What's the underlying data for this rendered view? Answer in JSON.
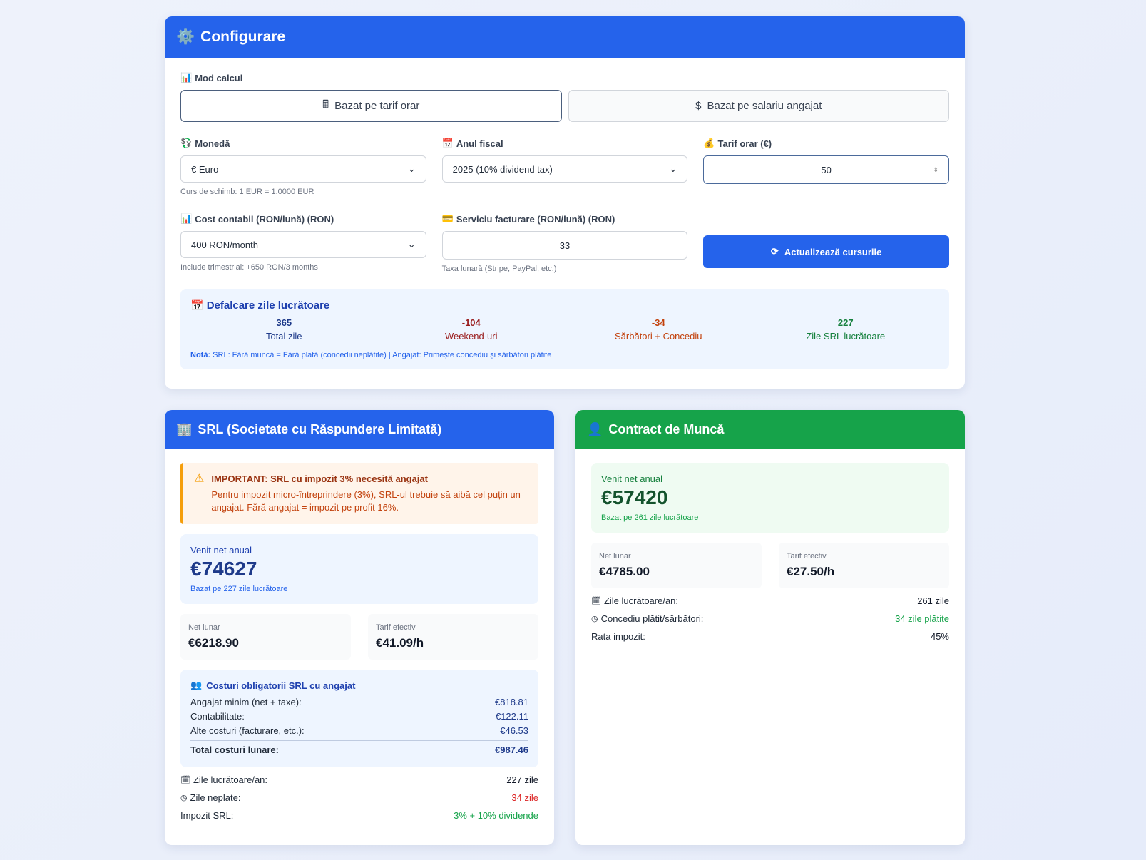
{
  "config": {
    "title": "Configurare",
    "mode_label": "Mod calcul",
    "mode_hourly": "Bazat pe tarif orar",
    "mode_salary": "Bazat pe salariu angajat",
    "currency_label": "Monedă",
    "currency_value": "€ Euro",
    "exchange_hint": "Curs de schimb: 1 EUR = 1.0000 EUR",
    "fiscal_label": "Anul fiscal",
    "fiscal_value": "2025 (10% dividend tax)",
    "rate_label": "Tarif orar (€)",
    "rate_value": "50",
    "accounting_label": "Cost contabil (RON/lună) (RON)",
    "accounting_value": "400 RON/month",
    "accounting_hint": "Include trimestrial: +650 RON/3 months",
    "billing_label": "Serviciu facturare (RON/lună) (RON)",
    "billing_value": "33",
    "billing_hint": "Taxa lunară (Stripe, PayPal, etc.)",
    "refresh_button": "Actualizează cursurile"
  },
  "breakdown": {
    "title": "Defalcare zile lucrătoare",
    "stats": [
      {
        "value": "365",
        "label": "Total zile",
        "color": "#1e3a8a"
      },
      {
        "value": "-104",
        "label": "Weekend-uri",
        "color": "#991b1b"
      },
      {
        "value": "-34",
        "label": "Sărbători + Concediu",
        "color": "#c2410c"
      },
      {
        "value": "227",
        "label": "Zile SRL lucrătoare",
        "color": "#15803d"
      }
    ],
    "note_bold": "Notă:",
    "note": " SRL: Fără muncă = Fără plată (concedii neplătite) | Angajat: Primește concediu și sărbători plătite"
  },
  "srl": {
    "title": "SRL (Societate cu Răspundere Limitată)",
    "warning_title": "IMPORTANT: SRL cu impozit 3% necesită angajat",
    "warning_text": "Pentru impozit micro-întreprindere (3%), SRL-ul trebuie să aibă cel puțin un angajat. Fără angajat = impozit pe profit 16%.",
    "net_label": "Venit net anual",
    "net_value": "€74627",
    "net_sub": "Bazat pe 227 zile lucrătoare",
    "monthly_label": "Net lunar",
    "monthly_value": "€6218.90",
    "rate_label": "Tarif efectiv",
    "rate_value": "€41.09/h",
    "costs_title": "Costuri obligatorii SRL cu angajat",
    "costs": [
      {
        "label": "Angajat minim (net + taxe):",
        "value": "€818.81"
      },
      {
        "label": "Contabilitate:",
        "value": "€122.11"
      },
      {
        "label": "Alte costuri (facturare, etc.):",
        "value": "€46.53"
      }
    ],
    "total_label": "Total costuri lunare:",
    "total_value": "€987.46",
    "info": [
      {
        "label": "Zile lucrătoare/an:",
        "value": "227 zile"
      },
      {
        "label": "Zile neplate:",
        "value": "34 zile"
      },
      {
        "label": "Impozit SRL:",
        "value": "3% + 10% dividende"
      }
    ]
  },
  "contract": {
    "title": "Contract de Muncă",
    "net_label": "Venit net anual",
    "net_value": "€57420",
    "net_sub": "Bazat pe 261 zile lucrătoare",
    "monthly_label": "Net lunar",
    "monthly_value": "€4785.00",
    "rate_label": "Tarif efectiv",
    "rate_value": "€27.50/h",
    "info": [
      {
        "label": "Zile lucrătoare/an:",
        "value": "261 zile"
      },
      {
        "label": "Concediu plătit/sărbători:",
        "value": "34 zile plătite"
      },
      {
        "label": "Rata impozit:",
        "value": "45%"
      }
    ]
  }
}
